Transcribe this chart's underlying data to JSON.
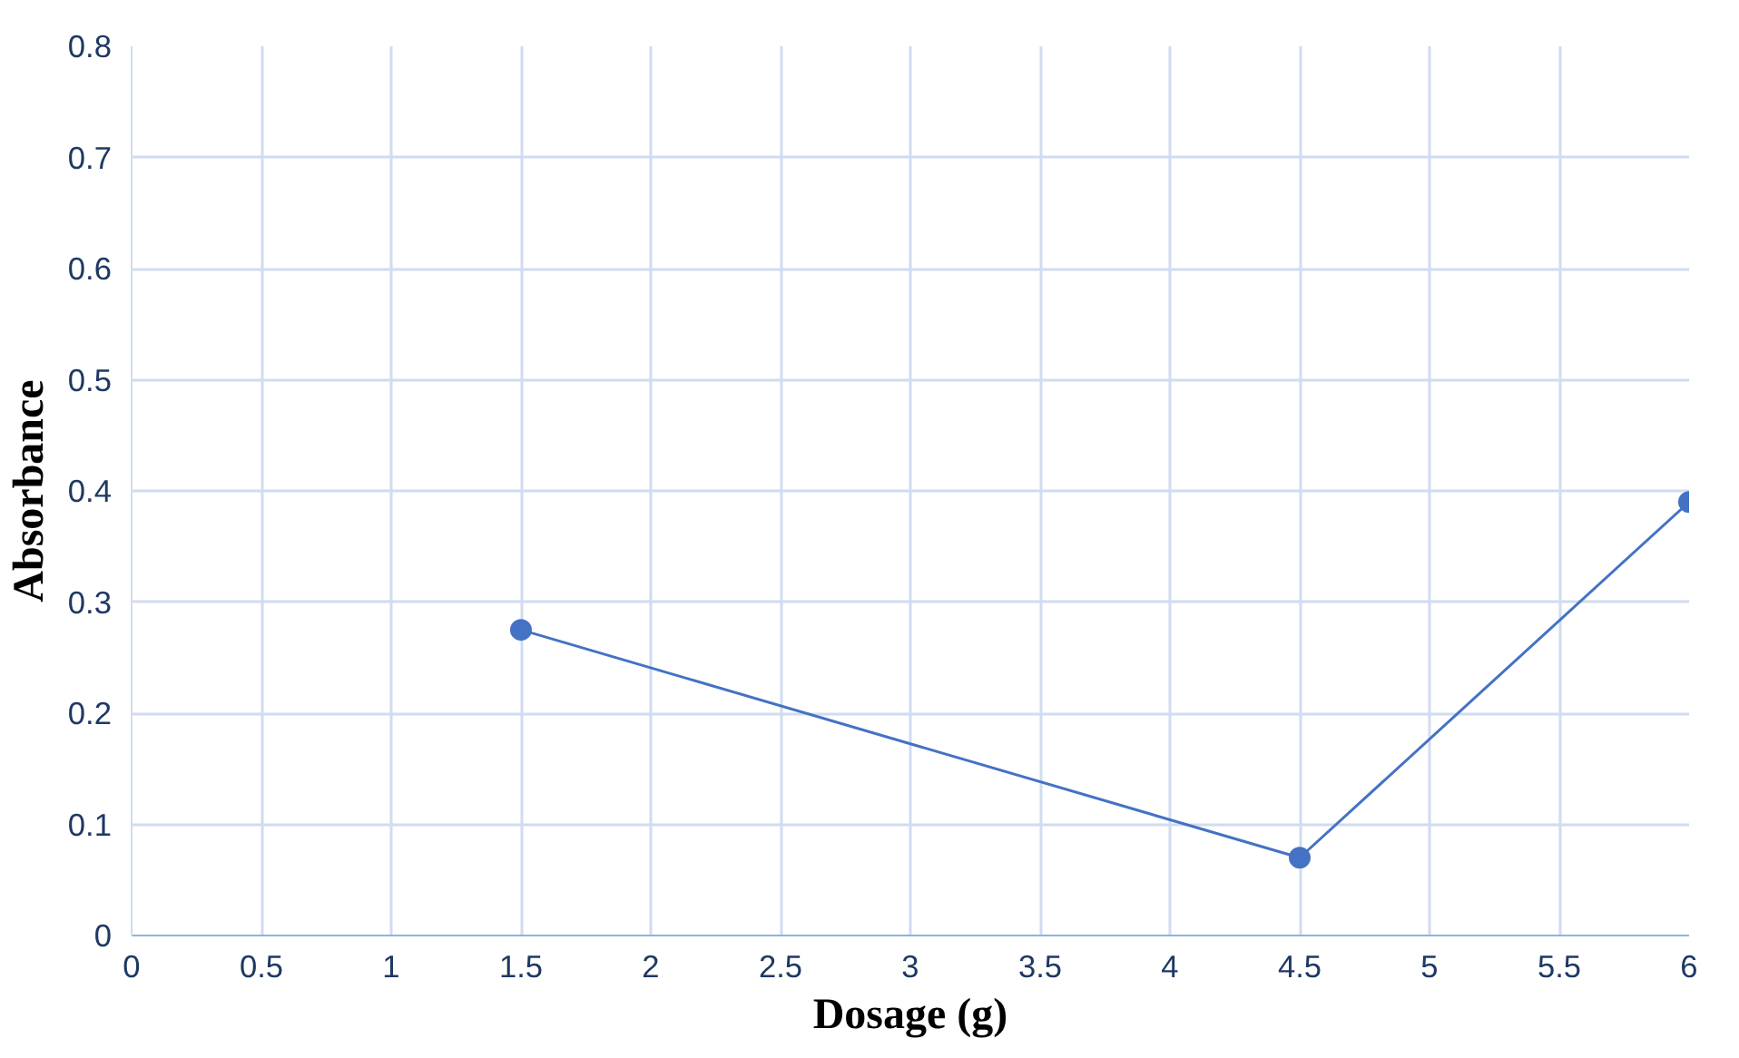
{
  "chart_data": {
    "type": "line",
    "xlabel": "Dosage (g)",
    "ylabel": "Absorbance",
    "x": [
      1.5,
      4.5,
      6
    ],
    "series": [
      {
        "color": "#4472c4",
        "values": [
          0.275,
          0.07,
          0.39
        ]
      }
    ],
    "xlim": [
      0,
      6
    ],
    "xticks": [
      0,
      0.5,
      1,
      1.5,
      2,
      2.5,
      3,
      3.5,
      4,
      4.5,
      5,
      5.5,
      6
    ],
    "ylim": [
      0,
      0.8
    ],
    "yticks": [
      0,
      0.1,
      0.2,
      0.3,
      0.4,
      0.5,
      0.6,
      0.7,
      0.8
    ],
    "grid": true,
    "marker": "circle",
    "line_style": "solid"
  }
}
